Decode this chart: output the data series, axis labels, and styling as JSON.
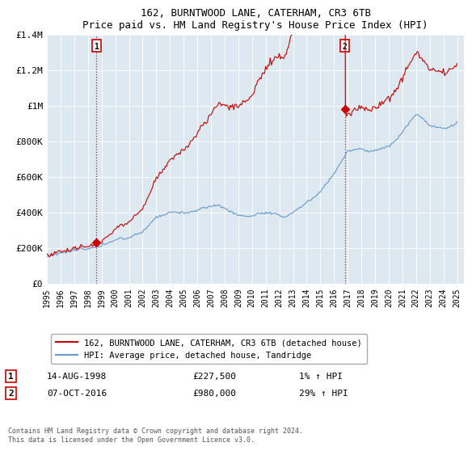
{
  "title": "162, BURNTWOOD LANE, CATERHAM, CR3 6TB",
  "subtitle": "Price paid vs. HM Land Registry's House Price Index (HPI)",
  "property_label": "162, BURNTWOOD LANE, CATERHAM, CR3 6TB (detached house)",
  "hpi_label": "HPI: Average price, detached house, Tandridge",
  "annotation1_date": "14-AUG-1998",
  "annotation1_price": "£227,500",
  "annotation1_hpi": "1% ↑ HPI",
  "annotation2_date": "07-OCT-2016",
  "annotation2_price": "£980,000",
  "annotation2_hpi": "29% ↑ HPI",
  "footer": "Contains HM Land Registry data © Crown copyright and database right 2024.\nThis data is licensed under the Open Government Licence v3.0.",
  "property_color": "#cc0000",
  "hpi_color": "#6699cc",
  "plot_bg_color": "#dde8f0",
  "annotation_color": "#cc0000",
  "ylim": [
    0,
    1400000
  ],
  "yticks": [
    0,
    200000,
    400000,
    600000,
    800000,
    1000000,
    1200000,
    1400000
  ],
  "background_color": "#ffffff",
  "grid_color": "#ffffff"
}
